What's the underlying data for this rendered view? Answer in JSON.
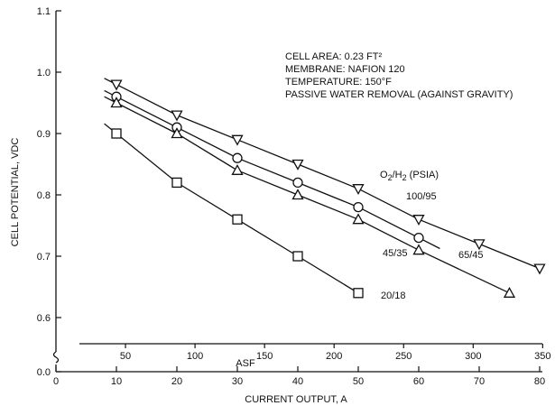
{
  "chart_data": {
    "type": "line",
    "title": "",
    "xlabel": "CURRENT OUTPUT, A",
    "ylabel": "CELL POTENTIAL, VDC",
    "xlim": [
      0,
      80
    ],
    "ylim": [
      0.5,
      1.1
    ],
    "x_ticks": [
      "0",
      "10",
      "20",
      "30",
      "40",
      "50",
      "60",
      "70",
      "80"
    ],
    "y_ticks": [
      "0.0",
      "0.6",
      "0.7",
      "0.8",
      "0.9",
      "1.0",
      "1.1"
    ],
    "y_axis_break": "0.0 to 0.6",
    "secondary_x_axis": {
      "label": "ASF",
      "ticks": [
        "50",
        "100",
        "150",
        "200",
        "250",
        "300",
        "350"
      ]
    },
    "annotations": [
      "CELL AREA: 0.23 FT²",
      "MEMBRANE: NAFION 120",
      "TEMPERATURE: 150°F",
      "PASSIVE WATER REMOVAL (AGAINST GRAVITY)"
    ],
    "legend_title": {
      "main": "O",
      "sub1": "2",
      "mid": "/H",
      "sub2": "2",
      "tail": " (PSIA)"
    },
    "series": [
      {
        "name": "100/95",
        "marker": "triangle-down",
        "x": [
          10,
          20,
          30,
          40,
          50,
          60,
          70,
          80
        ],
        "y": [
          0.98,
          0.93,
          0.89,
          0.85,
          0.81,
          0.76,
          0.72,
          0.68
        ]
      },
      {
        "name": "65/45",
        "marker": "circle",
        "x": [
          10,
          20,
          30,
          40,
          50,
          60
        ],
        "y": [
          0.96,
          0.91,
          0.86,
          0.82,
          0.78,
          0.73
        ]
      },
      {
        "name": "45/35",
        "marker": "triangle-up",
        "x": [
          10,
          20,
          30,
          40,
          50,
          60,
          75
        ],
        "y": [
          0.95,
          0.9,
          0.84,
          0.8,
          0.76,
          0.71,
          0.64
        ]
      },
      {
        "name": "20/18",
        "marker": "square",
        "x": [
          10,
          20,
          30,
          40,
          50
        ],
        "y": [
          0.9,
          0.82,
          0.76,
          0.7,
          0.64
        ]
      }
    ]
  }
}
